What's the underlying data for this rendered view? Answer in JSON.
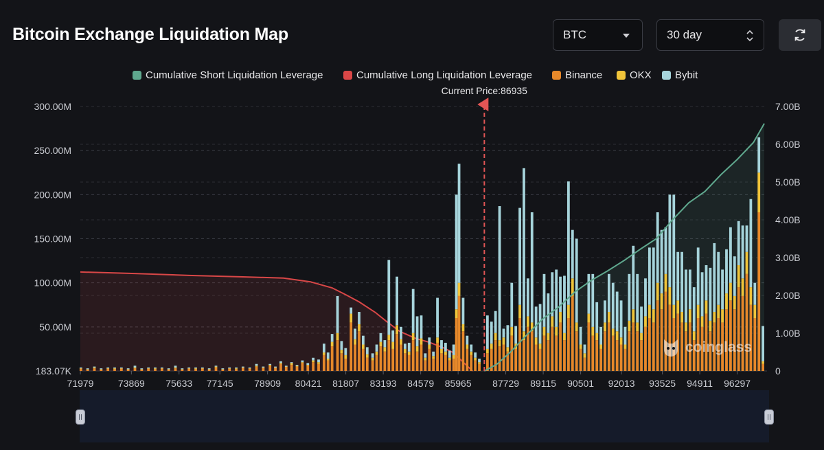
{
  "page": {
    "title": "Bitcoin Exchange Liquidation Map",
    "coin_select": "BTC",
    "range_select": "30 day",
    "refresh_icon": "refresh-icon",
    "watermark": "coinglass"
  },
  "chart_data": {
    "type": "bar",
    "stacked": true,
    "title": "Bitcoin Exchange Liquidation Map",
    "current_price_label": "Current Price:86935",
    "current_price": 86935,
    "x_min": 71979,
    "x_max": 97400,
    "x_ticks": [
      71979,
      73869,
      75633,
      77145,
      78909,
      80421,
      81807,
      83193,
      84579,
      85965,
      87729,
      89115,
      90501,
      92013,
      93525,
      94911,
      96297
    ],
    "y_left": {
      "ticks": [
        "183.07K",
        "50.00M",
        "100.00M",
        "150.00M",
        "200.00M",
        "250.00M",
        "300.00M"
      ],
      "min": 0,
      "max": 300
    },
    "y_right": {
      "ticks": [
        "0",
        "1.00B",
        "2.00B",
        "3.00B",
        "4.00B",
        "5.00B",
        "6.00B",
        "7.00B"
      ],
      "min": 0,
      "max": 7
    },
    "series": [
      {
        "name": "Cumulative Short Liquidation Leverage",
        "type": "area",
        "color": "#5fa88e"
      },
      {
        "name": "Cumulative Long Liquidation Leverage",
        "type": "area",
        "color": "#d94747"
      },
      {
        "name": "Binance",
        "type": "bar",
        "color": "#e6882a"
      },
      {
        "name": "OKX",
        "type": "bar",
        "color": "#f0c43a"
      },
      {
        "name": "Bybit",
        "type": "bar",
        "color": "#a6d4db"
      }
    ],
    "long_cumulative_B": [
      [
        71979,
        2.62
      ],
      [
        74000,
        2.58
      ],
      [
        76000,
        2.53
      ],
      [
        78000,
        2.49
      ],
      [
        79500,
        2.46
      ],
      [
        80500,
        2.36
      ],
      [
        81300,
        2.2
      ],
      [
        81800,
        2.02
      ],
      [
        82300,
        1.83
      ],
      [
        82900,
        1.55
      ],
      [
        83300,
        1.32
      ],
      [
        83800,
        1.05
      ],
      [
        84400,
        0.86
      ],
      [
        84900,
        0.76
      ],
      [
        85400,
        0.62
      ],
      [
        85800,
        0.48
      ],
      [
        86200,
        0.2
      ],
      [
        86500,
        0.0
      ]
    ],
    "short_cumulative_B": [
      [
        86935,
        0.0
      ],
      [
        87400,
        0.18
      ],
      [
        87900,
        0.5
      ],
      [
        88500,
        0.95
      ],
      [
        89100,
        1.38
      ],
      [
        89700,
        1.7
      ],
      [
        90300,
        2.1
      ],
      [
        90900,
        2.4
      ],
      [
        91500,
        2.65
      ],
      [
        92100,
        2.92
      ],
      [
        92700,
        3.22
      ],
      [
        93300,
        3.5
      ],
      [
        93900,
        4.0
      ],
      [
        94500,
        4.45
      ],
      [
        95100,
        4.75
      ],
      [
        95700,
        5.2
      ],
      [
        96300,
        5.6
      ],
      [
        96900,
        6.05
      ],
      [
        97300,
        6.55
      ]
    ],
    "bars_M": [
      [
        72000,
        3,
        0,
        1
      ],
      [
        72250,
        2,
        0,
        1
      ],
      [
        72500,
        3,
        1,
        1
      ],
      [
        72750,
        2,
        0,
        1
      ],
      [
        73000,
        3,
        0,
        1
      ],
      [
        73250,
        2,
        1,
        1
      ],
      [
        73500,
        3,
        0,
        1
      ],
      [
        73750,
        2,
        0,
        1
      ],
      [
        74000,
        3,
        1,
        2
      ],
      [
        74250,
        2,
        0,
        1
      ],
      [
        74500,
        3,
        0,
        1
      ],
      [
        74750,
        2,
        1,
        1
      ],
      [
        75000,
        3,
        0,
        1
      ],
      [
        75250,
        2,
        0,
        1
      ],
      [
        75500,
        3,
        1,
        2
      ],
      [
        75750,
        2,
        0,
        1
      ],
      [
        76000,
        3,
        0,
        1
      ],
      [
        76250,
        2,
        1,
        1
      ],
      [
        76500,
        3,
        0,
        1
      ],
      [
        76750,
        2,
        0,
        1
      ],
      [
        77000,
        4,
        1,
        1
      ],
      [
        77250,
        2,
        0,
        1
      ],
      [
        77500,
        3,
        0,
        1
      ],
      [
        77750,
        2,
        1,
        1
      ],
      [
        78000,
        4,
        0,
        1
      ],
      [
        78250,
        3,
        0,
        1
      ],
      [
        78500,
        5,
        1,
        2
      ],
      [
        78750,
        4,
        0,
        1
      ],
      [
        79000,
        6,
        1,
        1
      ],
      [
        79200,
        4,
        0,
        1
      ],
      [
        79400,
        8,
        1,
        2
      ],
      [
        79600,
        5,
        0,
        1
      ],
      [
        79800,
        7,
        2,
        1
      ],
      [
        80000,
        5,
        1,
        1
      ],
      [
        80200,
        9,
        1,
        2
      ],
      [
        80400,
        6,
        1,
        2
      ],
      [
        80600,
        10,
        2,
        3
      ],
      [
        80800,
        8,
        2,
        3
      ],
      [
        81000,
        18,
        3,
        10
      ],
      [
        81150,
        12,
        2,
        7
      ],
      [
        81300,
        28,
        5,
        9
      ],
      [
        81500,
        35,
        8,
        42
      ],
      [
        81650,
        20,
        4,
        10
      ],
      [
        81800,
        14,
        4,
        8
      ],
      [
        82000,
        55,
        10,
        7
      ],
      [
        82150,
        30,
        6,
        12
      ],
      [
        82300,
        45,
        8,
        14
      ],
      [
        82450,
        25,
        5,
        10
      ],
      [
        82600,
        15,
        4,
        8
      ],
      [
        82800,
        12,
        3,
        5
      ],
      [
        82950,
        18,
        4,
        8
      ],
      [
        83100,
        28,
        5,
        10
      ],
      [
        83250,
        22,
        5,
        8
      ],
      [
        83400,
        35,
        6,
        85
      ],
      [
        83550,
        25,
        8,
        13
      ],
      [
        83700,
        42,
        10,
        55
      ],
      [
        83850,
        30,
        6,
        14
      ],
      [
        84000,
        20,
        5,
        6
      ],
      [
        84150,
        18,
        4,
        10
      ],
      [
        84300,
        35,
        8,
        50
      ],
      [
        84450,
        22,
        6,
        34
      ],
      [
        84600,
        30,
        7,
        26
      ],
      [
        84750,
        12,
        3,
        5
      ],
      [
        84900,
        25,
        5,
        8
      ],
      [
        85050,
        14,
        3,
        5
      ],
      [
        85200,
        32,
        6,
        45
      ],
      [
        85350,
        20,
        5,
        10
      ],
      [
        85500,
        18,
        4,
        10
      ],
      [
        85650,
        12,
        3,
        8
      ],
      [
        85800,
        14,
        4,
        12
      ],
      [
        85900,
        60,
        10,
        130
      ],
      [
        86000,
        85,
        15,
        135
      ],
      [
        86150,
        45,
        8,
        30
      ],
      [
        86300,
        25,
        5,
        10
      ],
      [
        86450,
        18,
        4,
        8
      ],
      [
        86600,
        12,
        3,
        6
      ],
      [
        86750,
        8,
        2,
        4
      ],
      [
        87050,
        20,
        5,
        38
      ],
      [
        87200,
        25,
        6,
        25
      ],
      [
        87350,
        35,
        8,
        25
      ],
      [
        87500,
        28,
        7,
        152
      ],
      [
        87650,
        30,
        8,
        10
      ],
      [
        87800,
        22,
        5,
        25
      ],
      [
        87950,
        40,
        10,
        50
      ],
      [
        88100,
        25,
        6,
        20
      ],
      [
        88250,
        60,
        15,
        110
      ],
      [
        88400,
        35,
        10,
        185
      ],
      [
        88550,
        50,
        12,
        43
      ],
      [
        88700,
        45,
        10,
        125
      ],
      [
        88850,
        30,
        8,
        35
      ],
      [
        89000,
        25,
        6,
        45
      ],
      [
        89150,
        40,
        10,
        60
      ],
      [
        89300,
        35,
        8,
        45
      ],
      [
        89450,
        50,
        12,
        50
      ],
      [
        89600,
        40,
        10,
        65
      ],
      [
        89750,
        55,
        12,
        40
      ],
      [
        89900,
        35,
        8,
        65
      ],
      [
        90050,
        60,
        15,
        140
      ],
      [
        90200,
        85,
        20,
        55
      ],
      [
        90350,
        45,
        10,
        95
      ],
      [
        90500,
        25,
        5,
        20
      ],
      [
        90650,
        15,
        5,
        10
      ],
      [
        90800,
        55,
        10,
        45
      ],
      [
        90950,
        40,
        10,
        60
      ],
      [
        91100,
        35,
        8,
        35
      ],
      [
        91250,
        25,
        5,
        20
      ],
      [
        91400,
        45,
        10,
        25
      ],
      [
        91550,
        55,
        12,
        43
      ],
      [
        91700,
        40,
        8,
        52
      ],
      [
        91850,
        35,
        10,
        45
      ],
      [
        92000,
        30,
        8,
        42
      ],
      [
        92150,
        25,
        5,
        20
      ],
      [
        92300,
        45,
        12,
        53
      ],
      [
        92450,
        55,
        15,
        72
      ],
      [
        92600,
        45,
        10,
        55
      ],
      [
        92750,
        35,
        8,
        30
      ],
      [
        92900,
        50,
        12,
        43
      ],
      [
        93050,
        60,
        15,
        65
      ],
      [
        93200,
        55,
        15,
        70
      ],
      [
        93350,
        80,
        20,
        80
      ],
      [
        93500,
        70,
        18,
        72
      ],
      [
        93650,
        90,
        20,
        53
      ],
      [
        93800,
        75,
        20,
        105
      ],
      [
        93950,
        60,
        15,
        125
      ],
      [
        94100,
        65,
        15,
        55
      ],
      [
        94250,
        55,
        12,
        68
      ],
      [
        94400,
        45,
        10,
        60
      ],
      [
        94550,
        55,
        15,
        45
      ],
      [
        94700,
        35,
        10,
        50
      ],
      [
        94850,
        60,
        15,
        65
      ],
      [
        95000,
        50,
        12,
        50
      ],
      [
        95150,
        65,
        15,
        40
      ],
      [
        95300,
        45,
        12,
        60
      ],
      [
        95450,
        55,
        12,
        78
      ],
      [
        95600,
        60,
        15,
        60
      ],
      [
        95750,
        55,
        15,
        45
      ],
      [
        95900,
        70,
        18,
        50
      ],
      [
        96050,
        80,
        20,
        63
      ],
      [
        96200,
        70,
        15,
        45
      ],
      [
        96350,
        95,
        25,
        50
      ],
      [
        96500,
        85,
        20,
        60
      ],
      [
        96650,
        110,
        25,
        30
      ],
      [
        96800,
        75,
        20,
        100
      ],
      [
        96950,
        60,
        15,
        25
      ],
      [
        97100,
        180,
        45,
        40
      ],
      [
        97250,
        8,
        3,
        40
      ]
    ]
  }
}
